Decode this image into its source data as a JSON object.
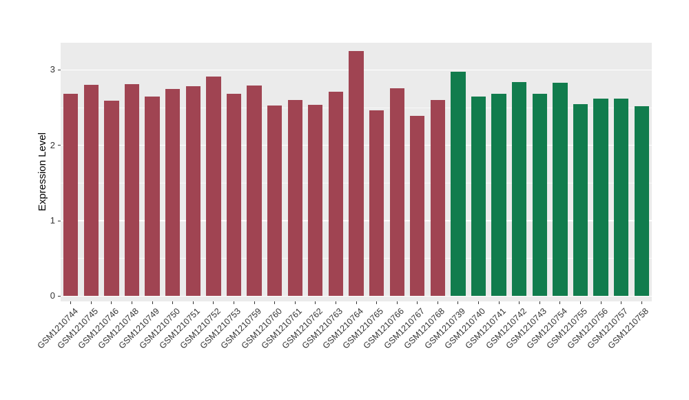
{
  "chart_data": {
    "type": "bar",
    "title": "",
    "xlabel": "",
    "ylabel": "Expression Level",
    "yticks": [
      0,
      1,
      2,
      3
    ],
    "minor_gridlines": [
      0.5,
      1.5,
      2.5
    ],
    "axis_range": [
      -0.07,
      3.36
    ],
    "ylim": [
      0,
      3.36
    ],
    "grid": true,
    "legend": "none",
    "categories": [
      "GSM1210744",
      "GSM1210745",
      "GSM1210746",
      "GSM1210748",
      "GSM1210749",
      "GSM1210750",
      "GSM1210751",
      "GSM1210752",
      "GSM1210753",
      "GSM1210759",
      "GSM1210760",
      "GSM1210761",
      "GSM1210762",
      "GSM1210763",
      "GSM1210764",
      "GSM1210765",
      "GSM1210766",
      "GSM1210767",
      "GSM1210768",
      "GSM1210739",
      "GSM1210740",
      "GSM1210741",
      "GSM1210742",
      "GSM1210743",
      "GSM1210754",
      "GSM1210755",
      "GSM1210756",
      "GSM1210757",
      "GSM1210758"
    ],
    "values": [
      2.68,
      2.8,
      2.59,
      2.81,
      2.65,
      2.75,
      2.78,
      2.91,
      2.68,
      2.79,
      2.53,
      2.6,
      2.54,
      2.71,
      3.25,
      2.46,
      2.76,
      2.39,
      2.6,
      2.98,
      2.65,
      2.68,
      2.84,
      2.68,
      2.83,
      2.55,
      2.62,
      2.62,
      2.52
    ],
    "groups": [
      "red",
      "red",
      "red",
      "red",
      "red",
      "red",
      "red",
      "red",
      "red",
      "red",
      "red",
      "red",
      "red",
      "red",
      "red",
      "red",
      "red",
      "red",
      "red",
      "green",
      "green",
      "green",
      "green",
      "green",
      "green",
      "green",
      "green",
      "green",
      "green"
    ],
    "group_colors": {
      "red": "#A04452",
      "green": "#117C4D"
    }
  }
}
